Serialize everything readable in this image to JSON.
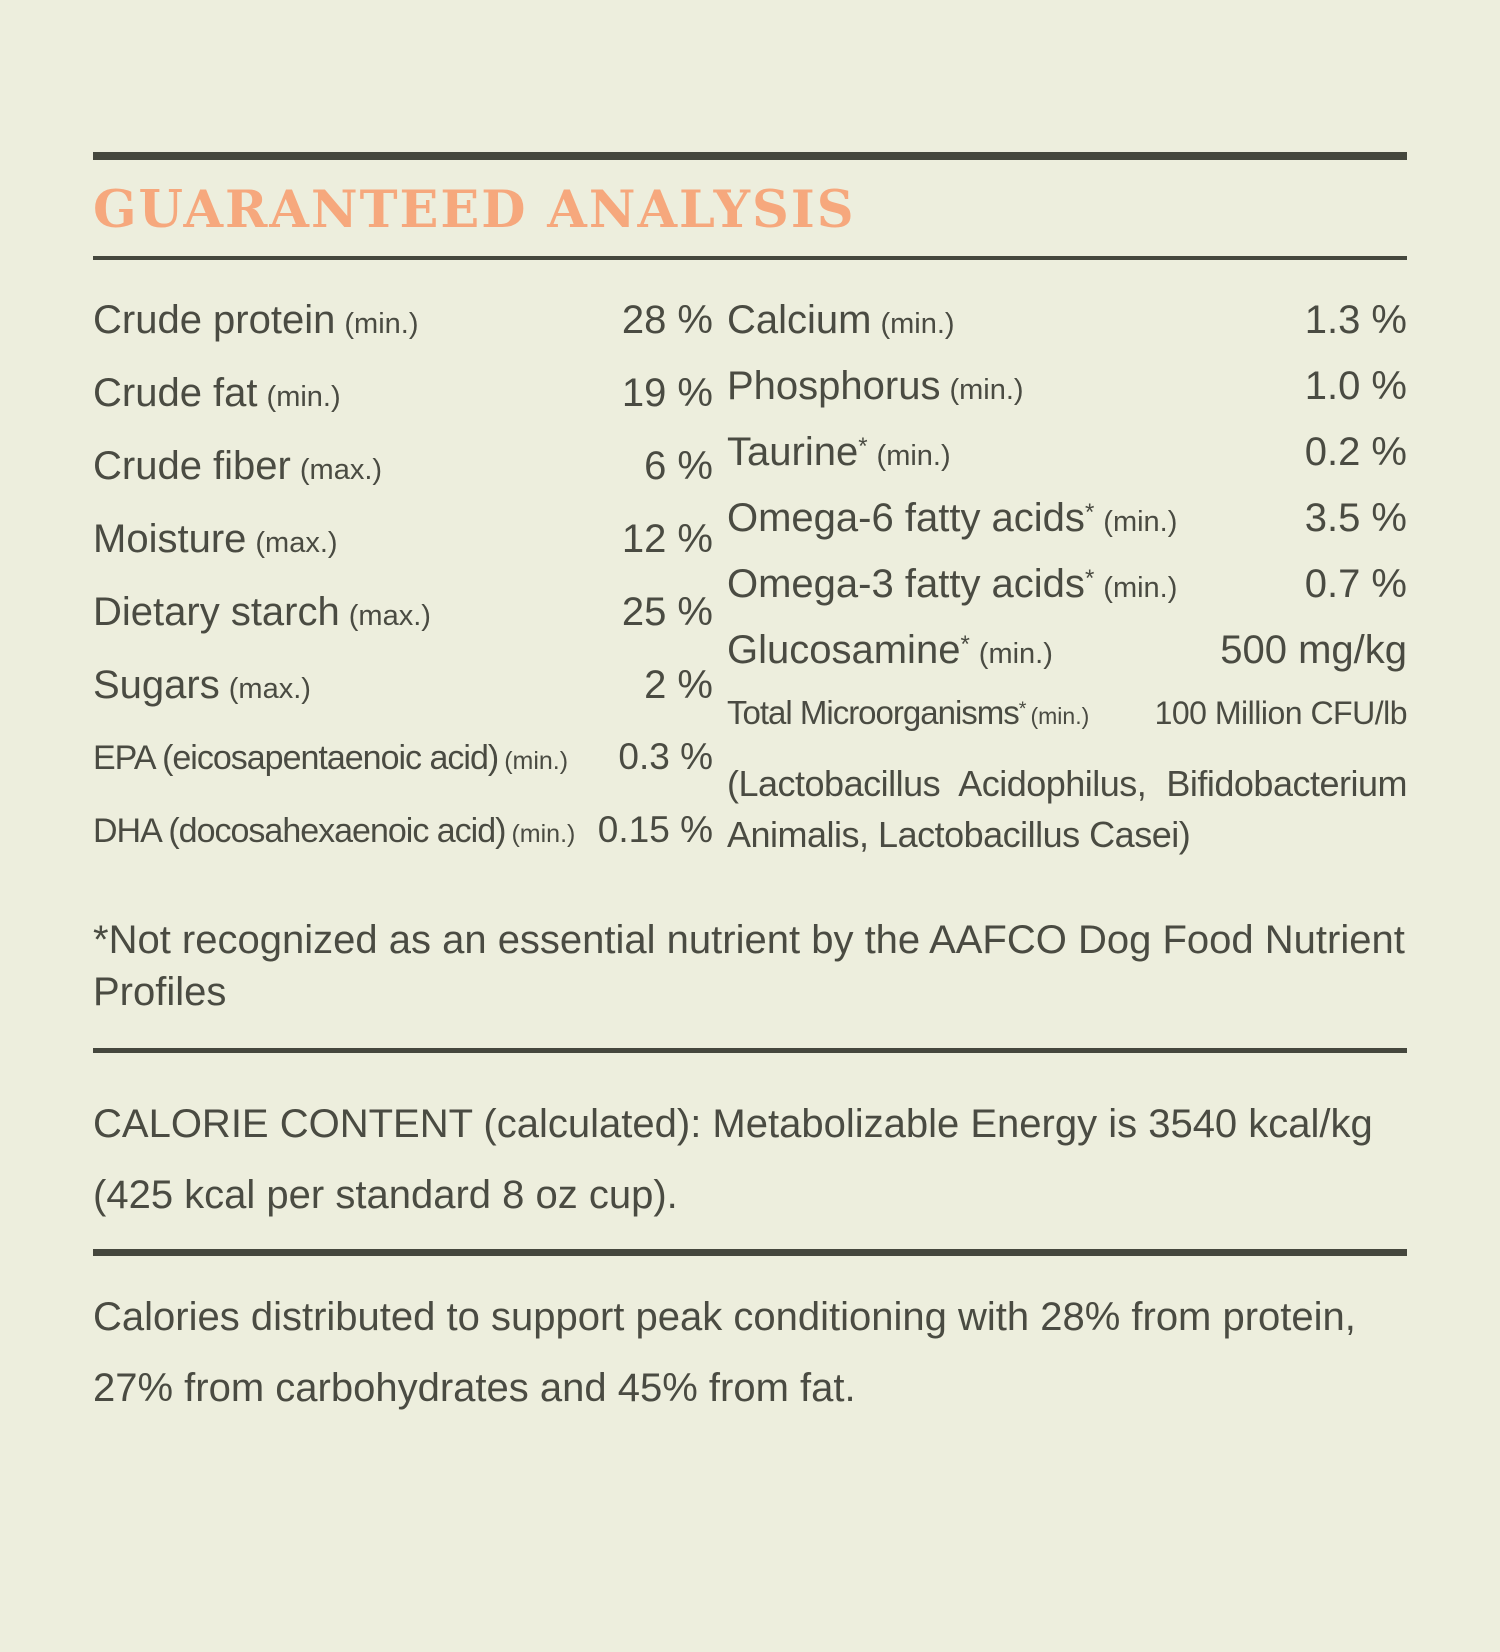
{
  "colors": {
    "background": "#edeedd",
    "text": "#4a4b42",
    "accent_heading": "#f6a87d",
    "rule": "#45473d"
  },
  "header": {
    "title": "GUARANTEED ANALYSIS"
  },
  "analysis": {
    "left_rows": [
      {
        "label": "Crude protein",
        "qualifier": "(min.)",
        "value": "28 %"
      },
      {
        "label": "Crude fat",
        "qualifier": "(min.)",
        "value": "19 %"
      },
      {
        "label": "Crude fiber",
        "qualifier": "(max.)",
        "value": "6 %"
      },
      {
        "label": "Moisture",
        "qualifier": "(max.)",
        "value": "12 %"
      },
      {
        "label": "Dietary starch",
        "qualifier": "(max.)",
        "value": "25 %"
      },
      {
        "label": "Sugars",
        "qualifier": "(max.)",
        "value": "2 %"
      },
      {
        "label": "EPA (eicosapentaenoic acid)",
        "qualifier": "(min.)",
        "value": "0.3 %"
      },
      {
        "label": "DHA (docosahexaenoic acid)",
        "qualifier": "(min.)",
        "value": "0.15 %"
      }
    ],
    "right_rows": [
      {
        "label": "Calcium",
        "sup": "",
        "qualifier": "(min.)",
        "value": "1.3 %"
      },
      {
        "label": "Phosphorus",
        "sup": "",
        "qualifier": "(min.)",
        "value": "1.0 %"
      },
      {
        "label": "Taurine",
        "sup": "*",
        "qualifier": "(min.)",
        "value": "0.2 %"
      },
      {
        "label": "Omega-6 fatty acids",
        "sup": "*",
        "qualifier": "(min.)",
        "value": "3.5 %"
      },
      {
        "label": "Omega-3 fatty acids",
        "sup": "*",
        "qualifier": "(min.)",
        "value": "0.7 %"
      },
      {
        "label": "Glucosamine",
        "sup": "*",
        "qualifier": "(min.)",
        "value": "500 mg/kg"
      },
      {
        "label": "Total Microorganisms",
        "sup": "*",
        "qualifier": "(min.)",
        "value": "100 Million CFU/lb",
        "note": "(Lactobacillus Acidophilus,  Bifidobacterium Animalis, Lactobacillus Casei)"
      }
    ],
    "footnote": "*Not recognized as an essential nutrient by the AAFCO Dog Food Nutrient Profiles"
  },
  "calorie_content": {
    "text": "CALORIE CONTENT (calculated): Metabolizable Energy is 3540 kcal/kg (425 kcal per standard 8 oz cup)."
  },
  "calorie_distribution": {
    "text": "Calories distributed to support peak conditioning with 28% from protein, 27% from carbohydrates and 45% from fat."
  }
}
